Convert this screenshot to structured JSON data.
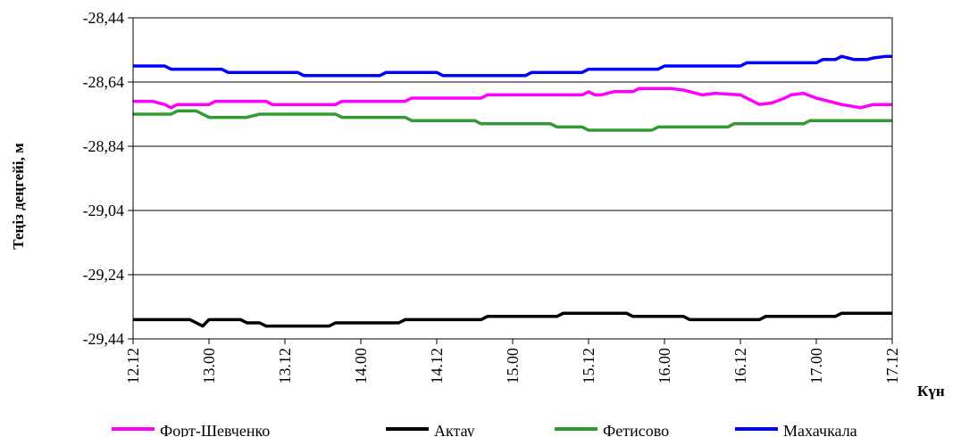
{
  "chart_data": {
    "type": "line",
    "title": "",
    "xlabel": "Күн",
    "ylabel": "Теңіз деңгейі, м",
    "ylim": [
      -29.44,
      -28.44
    ],
    "yticks": [
      -28.44,
      -28.64,
      -28.84,
      -29.04,
      -29.24,
      -29.44
    ],
    "ytick_labels": [
      "-28,44",
      "-28,64",
      "-28,84",
      "-29,04",
      "-29,24",
      "-29,44"
    ],
    "xlim": [
      0,
      120
    ],
    "xticks": [
      0,
      12,
      24,
      36,
      48,
      60,
      72,
      84,
      96,
      108,
      120
    ],
    "xtick_labels": [
      "12.12",
      "13.00",
      "13.12",
      "14.00",
      "14.12",
      "15.00",
      "15.12",
      "16.00",
      "16.12",
      "17.00",
      "17.12"
    ],
    "grid": "horizontal",
    "legend_position": "bottom",
    "series": [
      {
        "name": "Форт-Шевченко",
        "color": "#ff00ff",
        "points": [
          [
            0,
            -28.7
          ],
          [
            3,
            -28.7
          ],
          [
            5,
            -28.71
          ],
          [
            6,
            -28.72
          ],
          [
            7,
            -28.71
          ],
          [
            12,
            -28.71
          ],
          [
            13,
            -28.7
          ],
          [
            21,
            -28.7
          ],
          [
            22,
            -28.71
          ],
          [
            32,
            -28.71
          ],
          [
            33,
            -28.7
          ],
          [
            43,
            -28.7
          ],
          [
            44,
            -28.69
          ],
          [
            55,
            -28.69
          ],
          [
            56,
            -28.68
          ],
          [
            71,
            -28.68
          ],
          [
            72,
            -28.67
          ],
          [
            73,
            -28.68
          ],
          [
            74,
            -28.68
          ],
          [
            76,
            -28.67
          ],
          [
            79,
            -28.67
          ],
          [
            80,
            -28.66
          ],
          [
            85,
            -28.66
          ],
          [
            87,
            -28.665
          ],
          [
            90,
            -28.68
          ],
          [
            92,
            -28.675
          ],
          [
            96,
            -28.68
          ],
          [
            98,
            -28.7
          ],
          [
            99,
            -28.71
          ],
          [
            101,
            -28.705
          ],
          [
            103,
            -28.69
          ],
          [
            104,
            -28.68
          ],
          [
            106,
            -28.675
          ],
          [
            108,
            -28.69
          ],
          [
            110,
            -28.7
          ],
          [
            112,
            -28.71
          ],
          [
            115,
            -28.72
          ],
          [
            117,
            -28.71
          ],
          [
            120,
            -28.71
          ]
        ]
      },
      {
        "name": "Актау",
        "color": "#000000",
        "points": [
          [
            0,
            -29.38
          ],
          [
            9,
            -29.38
          ],
          [
            10,
            -29.39
          ],
          [
            11,
            -29.4
          ],
          [
            12,
            -29.38
          ],
          [
            17,
            -29.38
          ],
          [
            18,
            -29.39
          ],
          [
            20,
            -29.39
          ],
          [
            21,
            -29.4
          ],
          [
            31,
            -29.4
          ],
          [
            32,
            -29.39
          ],
          [
            42,
            -29.39
          ],
          [
            43,
            -29.38
          ],
          [
            55,
            -29.38
          ],
          [
            56,
            -29.37
          ],
          [
            67,
            -29.37
          ],
          [
            68,
            -29.36
          ],
          [
            78,
            -29.36
          ],
          [
            79,
            -29.37
          ],
          [
            87,
            -29.37
          ],
          [
            88,
            -29.38
          ],
          [
            99,
            -29.38
          ],
          [
            100,
            -29.37
          ],
          [
            111,
            -29.37
          ],
          [
            112,
            -29.36
          ],
          [
            120,
            -29.36
          ]
        ]
      },
      {
        "name": "Фетисово",
        "color": "#339933",
        "points": [
          [
            0,
            -28.74
          ],
          [
            6,
            -28.74
          ],
          [
            7,
            -28.73
          ],
          [
            10,
            -28.73
          ],
          [
            12,
            -28.75
          ],
          [
            18,
            -28.75
          ],
          [
            20,
            -28.74
          ],
          [
            32,
            -28.74
          ],
          [
            33,
            -28.75
          ],
          [
            43,
            -28.75
          ],
          [
            44,
            -28.76
          ],
          [
            54,
            -28.76
          ],
          [
            55,
            -28.77
          ],
          [
            66,
            -28.77
          ],
          [
            67,
            -28.78
          ],
          [
            71,
            -28.78
          ],
          [
            72,
            -28.79
          ],
          [
            82,
            -28.79
          ],
          [
            83,
            -28.78
          ],
          [
            94,
            -28.78
          ],
          [
            95,
            -28.77
          ],
          [
            106,
            -28.77
          ],
          [
            107,
            -28.76
          ],
          [
            120,
            -28.76
          ]
        ]
      },
      {
        "name": "Махачкала",
        "color": "#0000ff",
        "points": [
          [
            0,
            -28.59
          ],
          [
            5,
            -28.59
          ],
          [
            6,
            -28.6
          ],
          [
            14,
            -28.6
          ],
          [
            15,
            -28.61
          ],
          [
            26,
            -28.61
          ],
          [
            27,
            -28.62
          ],
          [
            39,
            -28.62
          ],
          [
            40,
            -28.61
          ],
          [
            48,
            -28.61
          ],
          [
            49,
            -28.62
          ],
          [
            62,
            -28.62
          ],
          [
            63,
            -28.61
          ],
          [
            71,
            -28.61
          ],
          [
            72,
            -28.6
          ],
          [
            83,
            -28.6
          ],
          [
            84,
            -28.59
          ],
          [
            96,
            -28.59
          ],
          [
            97,
            -28.58
          ],
          [
            108,
            -28.58
          ],
          [
            109,
            -28.57
          ],
          [
            111,
            -28.57
          ],
          [
            112,
            -28.56
          ],
          [
            113,
            -28.565
          ],
          [
            114,
            -28.57
          ],
          [
            116,
            -28.57
          ],
          [
            117,
            -28.565
          ],
          [
            119,
            -28.56
          ],
          [
            120,
            -28.56
          ]
        ]
      }
    ]
  }
}
